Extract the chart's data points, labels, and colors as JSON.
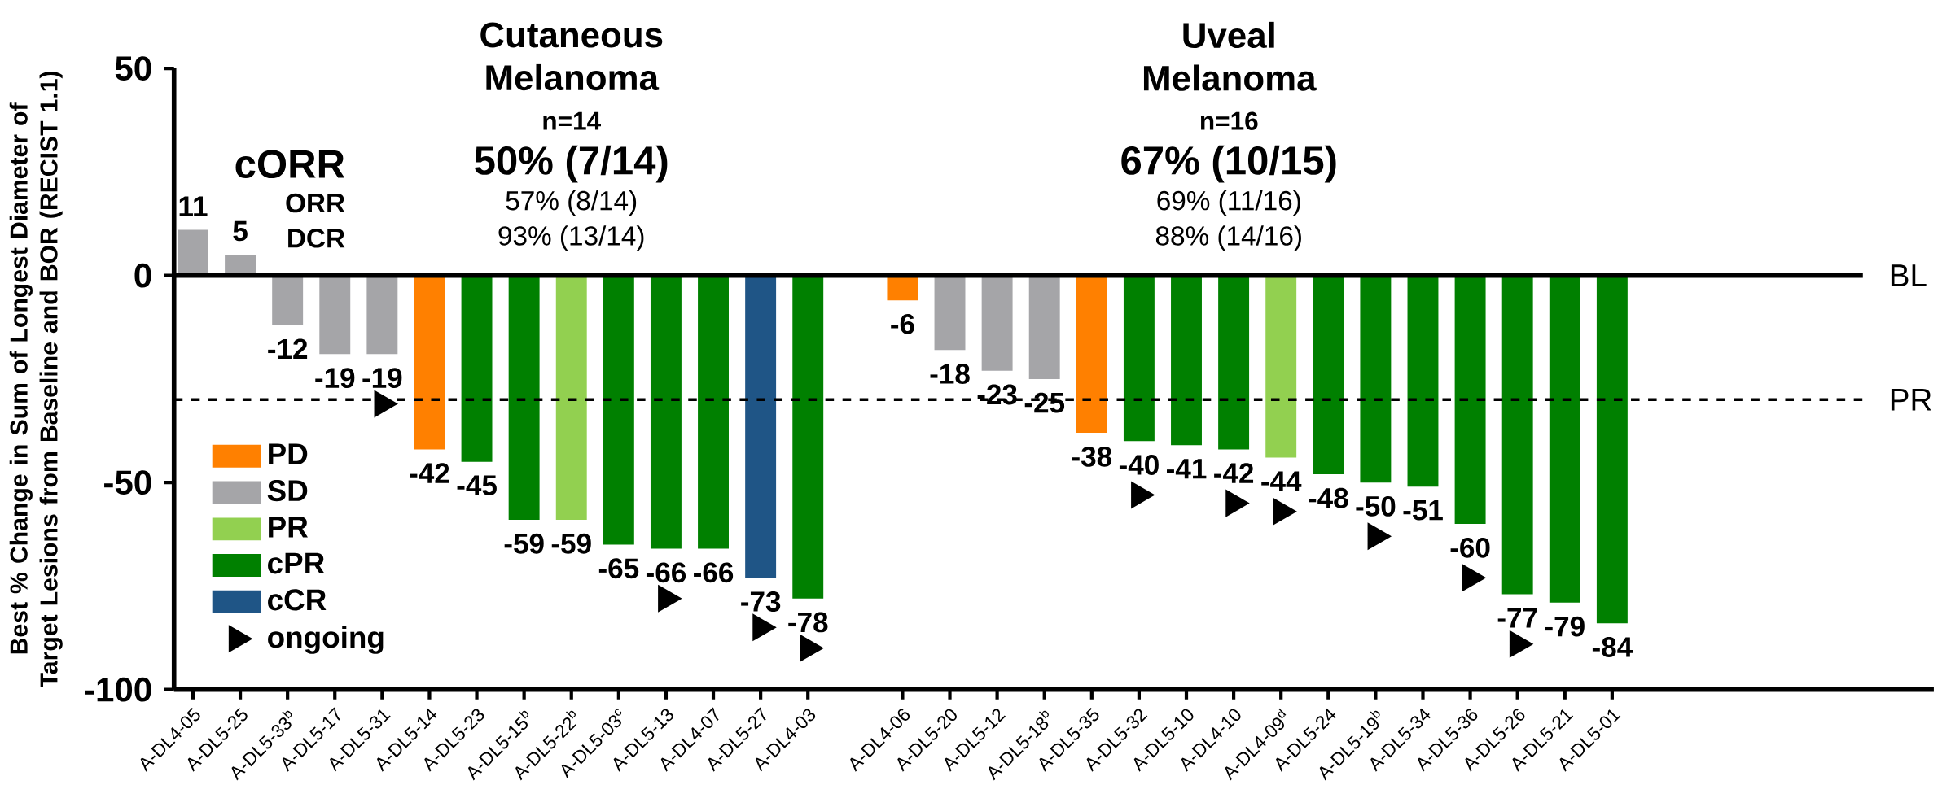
{
  "chart_data": {
    "type": "bar",
    "ylabel": "Best % Change in Sum of Longest Diameter of Target Lesions from Baseline and BOR (RECIST 1.1)",
    "categories": [
      "A-DL4-05",
      "A-DL5-25",
      "A-DL5-33$^{b}$",
      "A-DL5-17",
      "A-DL5-31",
      "A-DL5-14",
      "A-DL5-23",
      "A-DL5-15$^{b}$",
      "A-DL5-22$^{b}$",
      "A-DL5-03$^{c}$",
      "A-DL5-13",
      "A-DL4-07",
      "A-DL5-27",
      "A-DL4-03",
      null,
      "A-DL4-06",
      "A-DL5-20",
      "A-DL5-12",
      "A-DL5-18$^{b}$",
      "A-DL5-35",
      "A-DL5-32",
      "A-DL5-10",
      "A-DL4-10",
      "A-DL4-09$^{d}$",
      "A-DL5-24",
      "A-DL5-19$^{b}$",
      "A-DL5-34",
      "A-DL5-36",
      "A-DL5-26",
      "A-DL5-21",
      "A-DL5-01"
    ],
    "series": [
      {
        "name": "PD",
        "color": "#ff8000",
        "values": [
          null,
          null,
          null,
          null,
          null,
          -42,
          null,
          null,
          null,
          null,
          null,
          null,
          null,
          null,
          null,
          -6,
          null,
          null,
          null,
          -38,
          null,
          null,
          null,
          null,
          null,
          null,
          null,
          null,
          null,
          null,
          null
        ],
        "value_labels": [
          null,
          null,
          null,
          null,
          null,
          "-42",
          null,
          null,
          null,
          null,
          null,
          null,
          null,
          null,
          null,
          "-6",
          null,
          null,
          null,
          "-38",
          null,
          null,
          null,
          null,
          null,
          null,
          null,
          null,
          null,
          null,
          null
        ]
      },
      {
        "name": "SD",
        "color": "#a5a5a8",
        "values": [
          11,
          5,
          -12,
          -19,
          -19,
          null,
          null,
          null,
          null,
          null,
          null,
          null,
          null,
          null,
          null,
          null,
          -18,
          -23,
          -25,
          null,
          null,
          null,
          null,
          null,
          null,
          null,
          null,
          null,
          null,
          null,
          null
        ],
        "value_labels": [
          "11",
          "5",
          "-12",
          "-19",
          "-19",
          null,
          null,
          null,
          null,
          null,
          null,
          null,
          null,
          null,
          null,
          null,
          "-18",
          "-23",
          "-25",
          null,
          null,
          null,
          null,
          null,
          null,
          null,
          null,
          null,
          null,
          null,
          null
        ]
      },
      {
        "name": "PR",
        "color": "#92d050",
        "values": [
          null,
          null,
          null,
          null,
          null,
          null,
          null,
          null,
          -59,
          null,
          null,
          null,
          null,
          null,
          null,
          null,
          null,
          null,
          null,
          null,
          null,
          null,
          null,
          -44,
          null,
          null,
          null,
          null,
          null,
          null,
          null
        ],
        "value_labels": [
          null,
          null,
          null,
          null,
          null,
          null,
          null,
          null,
          "-59",
          null,
          null,
          null,
          null,
          null,
          null,
          null,
          null,
          null,
          null,
          null,
          null,
          null,
          null,
          "-44",
          null,
          null,
          null,
          null,
          null,
          null,
          null
        ]
      },
      {
        "name": "cPR",
        "color": "#008000",
        "values": [
          null,
          null,
          null,
          null,
          null,
          null,
          -45,
          -59,
          null,
          -65,
          -66,
          -66,
          null,
          -78,
          null,
          null,
          null,
          null,
          null,
          null,
          -40,
          -41,
          -42,
          null,
          -48,
          -50,
          -51,
          -60,
          -77,
          -79,
          -84
        ],
        "value_labels": [
          null,
          null,
          null,
          null,
          null,
          null,
          "-45",
          "-59",
          null,
          "-65",
          "-66",
          "-66",
          null,
          "-78",
          null,
          null,
          null,
          null,
          null,
          null,
          "-40",
          "-41",
          "-42",
          null,
          "-48",
          "-50",
          "-51",
          "-60",
          "-77",
          "-79",
          "-84"
        ]
      },
      {
        "name": "cCR",
        "color": "#1f5586",
        "values": [
          null,
          null,
          null,
          null,
          null,
          null,
          null,
          null,
          null,
          null,
          null,
          null,
          -73,
          null,
          null,
          null,
          null,
          null,
          null,
          null,
          null,
          null,
          null,
          null,
          null,
          null,
          null,
          null,
          null,
          null,
          null
        ],
        "value_labels": [
          null,
          null,
          null,
          null,
          null,
          null,
          null,
          null,
          null,
          null,
          null,
          null,
          "-73",
          null,
          null,
          null,
          null,
          null,
          null,
          null,
          null,
          null,
          null,
          null,
          null,
          null,
          null,
          null,
          null,
          null,
          null
        ]
      },
      {
        "name": "ongoing",
        "type": "scatter",
        "color": "#000000",
        "marker": "triangle",
        "values": [
          null,
          null,
          null,
          null,
          -31,
          null,
          null,
          null,
          null,
          null,
          -78,
          null,
          -85,
          -90,
          null,
          null,
          null,
          null,
          null,
          null,
          -53,
          null,
          -55,
          -57,
          null,
          -63,
          null,
          -73,
          -89,
          null,
          null
        ]
      }
    ],
    "ylim": [
      -100,
      50
    ],
    "yticks": [
      -100,
      -50,
      0,
      50
    ],
    "ref_lines": [
      {
        "axis": "y",
        "value": 0,
        "label": "BL",
        "line_style": "solid"
      },
      {
        "axis": "y",
        "value": -30,
        "label": "PR",
        "line_style": "dashed"
      }
    ],
    "annotations": [
      "Cutaneous Melanoma",
      "n=14",
      "cORR",
      "50% (7/14)",
      "ORR",
      "57% (8/14)",
      "DCR",
      "93% (13/14)",
      "Uveal Melanoma",
      "n=16",
      "67% (10/15)",
      "69% (11/16)",
      "88% (14/16)"
    ],
    "legend": "bottom left",
    "grid": false
  }
}
